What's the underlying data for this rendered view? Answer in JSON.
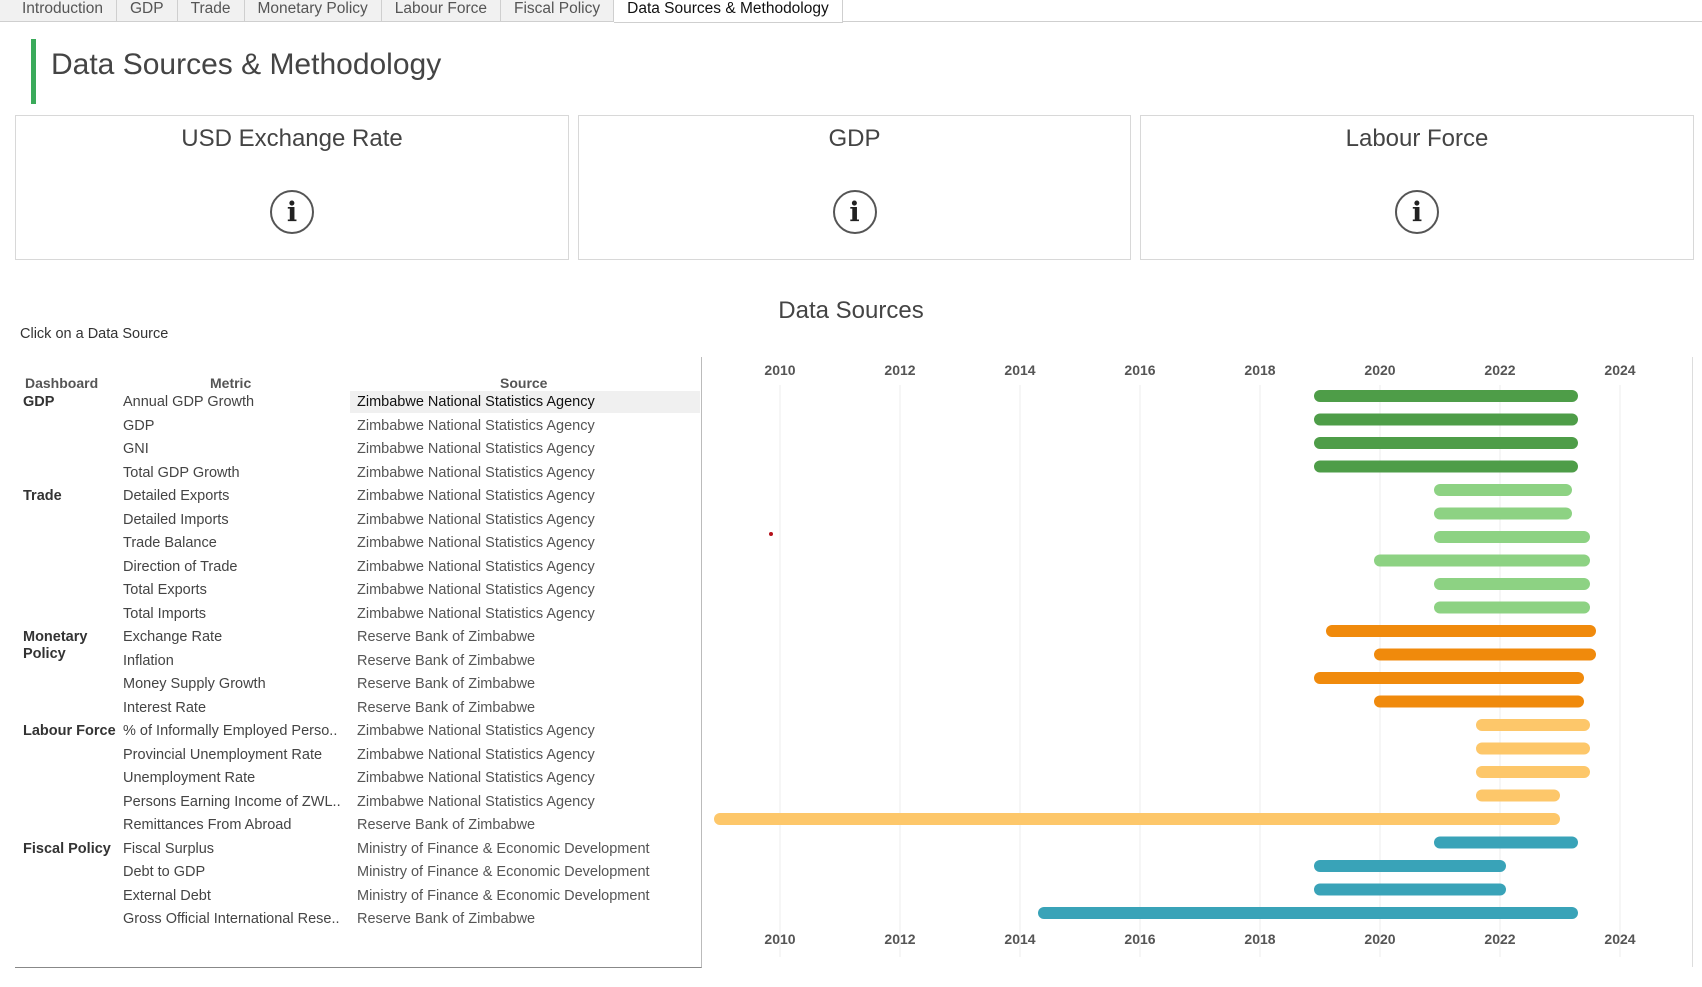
{
  "tabs": [
    {
      "label": "Introduction",
      "active": false
    },
    {
      "label": "GDP",
      "active": false
    },
    {
      "label": "Trade",
      "active": false
    },
    {
      "label": "Monetary Policy",
      "active": false
    },
    {
      "label": "Labour Force",
      "active": false
    },
    {
      "label": "Fiscal Policy",
      "active": false
    },
    {
      "label": "Data Sources & Methodology",
      "active": true
    }
  ],
  "page_title": "Data Sources & Methodology",
  "accent_color": "#3aaa5a",
  "cards": [
    {
      "title": "USD Exchange Rate",
      "icon": "info-icon"
    },
    {
      "title": "GDP",
      "icon": "info-icon"
    },
    {
      "title": "Labour Force",
      "icon": "info-icon"
    }
  ],
  "section_title": "Data Sources",
  "hint": "Click on a Data Source",
  "table": {
    "headers": {
      "dashboard": "Dashboard",
      "metric": "Metric",
      "source": "Source"
    },
    "rows": [
      {
        "dashboard": "GDP",
        "metric": "Annual GDP Growth",
        "source": "Zimbabwe National Statistics Agency",
        "selected": true
      },
      {
        "dashboard": "",
        "metric": "GDP",
        "source": "Zimbabwe National Statistics Agency"
      },
      {
        "dashboard": "",
        "metric": "GNI",
        "source": "Zimbabwe National Statistics Agency"
      },
      {
        "dashboard": "",
        "metric": "Total GDP Growth",
        "source": "Zimbabwe National Statistics Agency"
      },
      {
        "dashboard": "Trade",
        "metric": "Detailed Exports",
        "source": "Zimbabwe National Statistics Agency"
      },
      {
        "dashboard": "",
        "metric": "Detailed Imports",
        "source": "Zimbabwe National Statistics Agency"
      },
      {
        "dashboard": "",
        "metric": "Trade Balance",
        "source": "Zimbabwe National Statistics Agency"
      },
      {
        "dashboard": "",
        "metric": "Direction of Trade",
        "source": "Zimbabwe National Statistics Agency"
      },
      {
        "dashboard": "",
        "metric": "Total Exports",
        "source": "Zimbabwe National Statistics Agency"
      },
      {
        "dashboard": "",
        "metric": "Total Imports",
        "source": "Zimbabwe National Statistics Agency"
      },
      {
        "dashboard": "Monetary Policy",
        "metric": "Exchange Rate",
        "source": "Reserve Bank of Zimbabwe"
      },
      {
        "dashboard": "",
        "metric": "Inflation",
        "source": "Reserve Bank of Zimbabwe"
      },
      {
        "dashboard": "",
        "metric": "Money Supply Growth",
        "source": "Reserve Bank of Zimbabwe"
      },
      {
        "dashboard": "",
        "metric": "Interest Rate",
        "source": "Reserve Bank of Zimbabwe"
      },
      {
        "dashboard": "Labour Force",
        "metric": "% of Informally Employed Perso..",
        "source": "Zimbabwe National Statistics Agency"
      },
      {
        "dashboard": "",
        "metric": "Provincial Unemployment Rate",
        "source": "Zimbabwe National Statistics Agency"
      },
      {
        "dashboard": "",
        "metric": "Unemployment Rate",
        "source": "Zimbabwe National Statistics Agency"
      },
      {
        "dashboard": "",
        "metric": "Persons Earning Income of ZWL..",
        "source": "Zimbabwe National Statistics Agency"
      },
      {
        "dashboard": "",
        "metric": "Remittances From Abroad",
        "source": "Reserve Bank of Zimbabwe"
      },
      {
        "dashboard": "Fiscal Policy",
        "metric": "Fiscal Surplus",
        "source": "Ministry of Finance & Economic Development"
      },
      {
        "dashboard": "",
        "metric": "Debt to GDP",
        "source": "Ministry of Finance & Economic Development"
      },
      {
        "dashboard": "",
        "metric": "External Debt",
        "source": "Ministry of Finance & Economic Development"
      },
      {
        "dashboard": "",
        "metric": "Gross Official International Rese..",
        "source": "Reserve Bank of Zimbabwe"
      }
    ]
  },
  "chart_data": {
    "type": "gantt",
    "x_ticks": [
      "2010",
      "2012",
      "2014",
      "2016",
      "2018",
      "2020",
      "2022",
      "2024"
    ],
    "xlim": [
      2008.7,
      2025.2
    ],
    "grid": true,
    "ranges": [
      {
        "metric": "Annual GDP Growth",
        "start": 2019.0,
        "end": 2023.2,
        "color": "#4e9d48"
      },
      {
        "metric": "GDP",
        "start": 2019.0,
        "end": 2023.2,
        "color": "#4e9d48"
      },
      {
        "metric": "GNI",
        "start": 2019.0,
        "end": 2023.2,
        "color": "#4e9d48"
      },
      {
        "metric": "Total GDP Growth",
        "start": 2019.0,
        "end": 2023.2,
        "color": "#4e9d48"
      },
      {
        "metric": "Detailed Exports",
        "start": 2021.0,
        "end": 2023.1,
        "color": "#8dd283"
      },
      {
        "metric": "Detailed Imports",
        "start": 2021.0,
        "end": 2023.1,
        "color": "#8dd283"
      },
      {
        "metric": "Trade Balance",
        "start": 2021.0,
        "end": 2023.4,
        "color": "#8dd283"
      },
      {
        "metric": "Direction of Trade",
        "start": 2020.0,
        "end": 2023.4,
        "color": "#8dd283"
      },
      {
        "metric": "Total Exports",
        "start": 2021.0,
        "end": 2023.4,
        "color": "#8dd283"
      },
      {
        "metric": "Total Imports",
        "start": 2021.0,
        "end": 2023.4,
        "color": "#8dd283"
      },
      {
        "metric": "Exchange Rate",
        "start": 2019.2,
        "end": 2023.5,
        "color": "#f08a0c"
      },
      {
        "metric": "Inflation",
        "start": 2020.0,
        "end": 2023.5,
        "color": "#f08a0c"
      },
      {
        "metric": "Money Supply Growth",
        "start": 2019.0,
        "end": 2023.3,
        "color": "#f08a0c"
      },
      {
        "metric": "Interest Rate",
        "start": 2020.0,
        "end": 2023.3,
        "color": "#f08a0c"
      },
      {
        "metric": "% of Informally Employed Perso..",
        "start": 2021.7,
        "end": 2023.4,
        "color": "#fdc76a"
      },
      {
        "metric": "Provincial Unemployment Rate",
        "start": 2021.7,
        "end": 2023.4,
        "color": "#fdc76a"
      },
      {
        "metric": "Unemployment Rate",
        "start": 2021.7,
        "end": 2023.4,
        "color": "#fdc76a"
      },
      {
        "metric": "Persons Earning Income of ZWL..",
        "start": 2021.7,
        "end": 2022.9,
        "color": "#fdc76a"
      },
      {
        "metric": "Remittances From Abroad",
        "start": 2009.0,
        "end": 2022.9,
        "color": "#fdc76a"
      },
      {
        "metric": "Fiscal Surplus",
        "start": 2021.0,
        "end": 2023.2,
        "color": "#39a3b8"
      },
      {
        "metric": "Debt to GDP",
        "start": 2019.0,
        "end": 2022.0,
        "color": "#39a3b8"
      },
      {
        "metric": "External Debt",
        "start": 2019.0,
        "end": 2022.0,
        "color": "#39a3b8"
      },
      {
        "metric": "Gross Official International Rese..",
        "start": 2014.4,
        "end": 2023.2,
        "color": "#39a3b8"
      }
    ]
  }
}
